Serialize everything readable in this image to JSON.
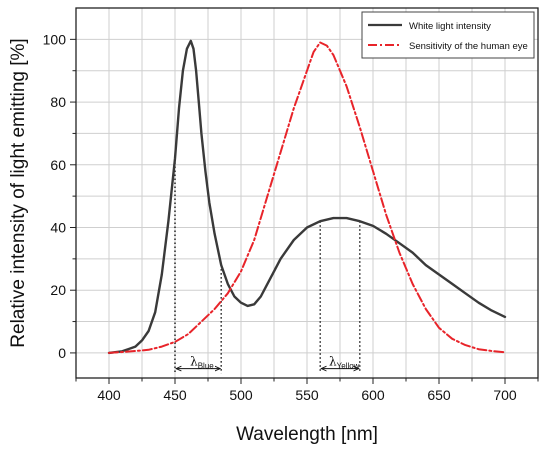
{
  "chart_data": {
    "type": "line",
    "xlabel": "Wavelength [nm]",
    "ylabel": "Relative intensity of light emitting [%]",
    "xlim": [
      375,
      725
    ],
    "ylim": [
      -8,
      110
    ],
    "xticks": [
      400,
      450,
      500,
      550,
      600,
      650,
      700
    ],
    "yticks": [
      0,
      20,
      40,
      60,
      80,
      100
    ],
    "grid": true,
    "legend_position": "top-right",
    "series": [
      {
        "name": "White light intensity",
        "color": "#3a3a3a",
        "style": "solid",
        "x": [
          400,
          410,
          420,
          425,
          430,
          435,
          440,
          445,
          450,
          453,
          456,
          459,
          462,
          464,
          466,
          468,
          470,
          473,
          476,
          480,
          485,
          490,
          495,
          500,
          505,
          510,
          515,
          520,
          525,
          530,
          540,
          550,
          560,
          570,
          580,
          590,
          600,
          610,
          620,
          630,
          640,
          650,
          660,
          670,
          680,
          690,
          700
        ],
        "y": [
          0,
          0.5,
          2,
          4,
          7,
          13,
          25,
          42,
          62,
          78,
          90,
          97,
          99.5,
          97,
          90,
          80,
          70,
          58,
          48,
          38,
          28,
          22,
          18,
          16,
          15,
          15.5,
          18,
          22,
          26,
          30,
          36,
          40,
          42,
          43,
          43,
          42,
          40.5,
          38,
          35,
          32,
          28,
          25,
          22,
          19,
          16,
          13.5,
          11.5
        ]
      },
      {
        "name": "Sensitivity of the human eye",
        "color": "#e8242a",
        "style": "dashdot",
        "x": [
          400,
          410,
          420,
          430,
          440,
          450,
          460,
          470,
          480,
          490,
          500,
          510,
          520,
          530,
          540,
          550,
          555,
          560,
          565,
          570,
          580,
          590,
          600,
          610,
          620,
          630,
          640,
          650,
          660,
          670,
          680,
          690,
          700
        ],
        "y": [
          0,
          0.3,
          0.6,
          1,
          2,
          3.5,
          6,
          10,
          14,
          19,
          26,
          36,
          50,
          64,
          78,
          90,
          96,
          99,
          98,
          95,
          85,
          72,
          58,
          44,
          32,
          22,
          14,
          8,
          4.5,
          2.5,
          1.2,
          0.6,
          0.2
        ]
      }
    ],
    "annotations": [
      {
        "text": "λ",
        "subscript": "Blue",
        "x_from": 450,
        "x_to": 485
      },
      {
        "text": "λ",
        "subscript": "Yellow",
        "x_from": 560,
        "x_to": 590
      }
    ]
  }
}
